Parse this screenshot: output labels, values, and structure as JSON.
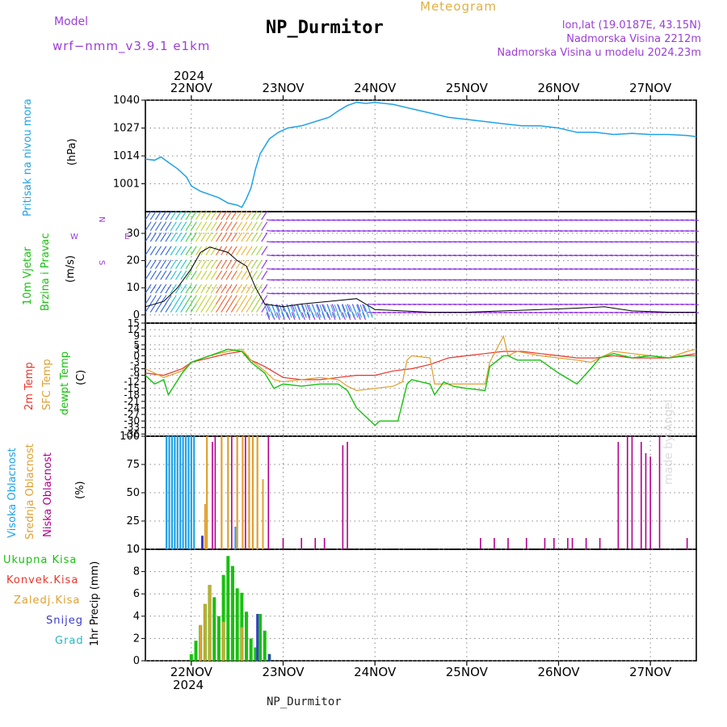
{
  "header": {
    "model_label": "Model",
    "model_name": "wrf−nmm_v3.9.1  e1km",
    "station_title": "NP_Durmitor",
    "meteogram_label": "Meteogram",
    "lonlat": "lon,lat (19.0187E, 43.15N)",
    "elevation": "Nadmorska Visina 2212m",
    "model_elevation": "Nadmorska Visina u modelu 2024.23m",
    "year_top": "2024",
    "watermark": "made by Angel",
    "footer_station": "NP_Durmitor",
    "year_bottom": "2024"
  },
  "colors": {
    "pressure": "#1fa2e8",
    "temp2m": "#e8352b",
    "sfc": "#e0a030",
    "dewpt": "#17c10e",
    "cloud_high": "#1fa2e8",
    "cloud_mid": "#e0a030",
    "cloud_low": "#b3008c",
    "precip_total": "#17c10e",
    "precip_conv": "#e8352b",
    "precip_frozen": "#e0a030",
    "snow": "#3a3ad0",
    "graupel": "#2ab8c0",
    "label_purple": "#9b3ed9",
    "label_gold": "#e0b040"
  },
  "chart_data": [
    {
      "type": "line",
      "id": "pressure",
      "title": "Pritisak na nivou mora",
      "ylabel": "(hPa)",
      "yticks": [
        1001,
        1014,
        1027,
        1040
      ],
      "ylim": [
        988,
        1040
      ],
      "xlim": [
        21.5,
        27.5
      ],
      "x_tick_labels": [
        "22NOV",
        "23NOV",
        "24NOV",
        "25NOV",
        "26NOV",
        "27NOV"
      ],
      "grid": true,
      "series": [
        {
          "x": [
            21.5,
            21.6,
            21.67,
            21.75,
            21.85,
            21.95,
            22.0,
            22.1,
            22.2,
            22.3,
            22.4,
            22.5,
            22.55,
            22.6,
            22.65,
            22.7,
            22.75,
            22.85,
            22.95,
            23.05,
            23.2,
            23.35,
            23.5,
            23.6,
            23.7,
            23.8,
            23.9,
            24.0,
            24.2,
            24.4,
            24.6,
            24.8,
            25.0,
            25.2,
            25.4,
            25.6,
            25.8,
            26.0,
            26.2,
            26.4,
            26.6,
            26.8,
            27.0,
            27.2,
            27.4,
            27.5
          ],
          "y": [
            1012.5,
            1012,
            1013.5,
            1011,
            1008,
            1004,
            1000,
            997.5,
            996,
            994.5,
            992,
            991,
            990,
            994,
            999,
            1008,
            1015,
            1022,
            1025,
            1027,
            1028,
            1030,
            1032,
            1035,
            1037.5,
            1039,
            1038.5,
            1039,
            1038,
            1036,
            1034,
            1032,
            1031,
            1030,
            1029,
            1028,
            1028,
            1027,
            1025,
            1025,
            1024,
            1024.5,
            1024,
            1024,
            1023.5,
            1023
          ]
        }
      ]
    },
    {
      "type": "line",
      "id": "wind",
      "title": "10m Vjetar Brzina i Pravac",
      "ylabel": "(m/s)",
      "direction_legend": [
        "N",
        "E",
        "W",
        "S"
      ],
      "yticks": [
        0,
        10,
        20,
        30
      ],
      "ylim": [
        -3,
        38
      ],
      "xlim": [
        21.5,
        27.5
      ],
      "barb_rows": [
        1,
        4,
        8,
        13,
        17,
        22,
        27,
        31,
        35,
        38
      ],
      "series": [
        {
          "name": "speed",
          "x": [
            21.5,
            21.7,
            21.85,
            22.0,
            22.1,
            22.2,
            22.3,
            22.4,
            22.5,
            22.6,
            22.7,
            22.8,
            23.0,
            23.2,
            23.5,
            23.8,
            24.0,
            24.3,
            24.6,
            25.0,
            25.4,
            25.8,
            26.2,
            26.5,
            26.8,
            27.2,
            27.5
          ],
          "y": [
            3,
            5,
            10,
            17,
            23,
            25,
            24,
            23,
            20,
            18,
            10,
            4,
            3,
            4,
            5,
            6,
            2,
            1.5,
            1,
            1,
            1.5,
            2,
            2.5,
            3,
            1.5,
            1,
            1
          ]
        }
      ]
    },
    {
      "type": "line",
      "id": "temperature",
      "title": [
        "2m Temp",
        "SFC Temp",
        "dewpt Temp"
      ],
      "ylabel": "(C)",
      "yticks": [
        15,
        12,
        9,
        5,
        3,
        0,
        -3,
        -6,
        -9,
        -12,
        -15,
        -18,
        -21,
        -24,
        -27,
        -30,
        -33,
        -36
      ],
      "ylim": [
        -37,
        15
      ],
      "xlim": [
        21.5,
        27.5
      ],
      "series": [
        {
          "name": "2m Temp",
          "x": [
            21.5,
            21.7,
            21.9,
            22.0,
            22.2,
            22.4,
            22.55,
            22.65,
            22.8,
            23.0,
            23.2,
            23.4,
            23.6,
            23.8,
            24.0,
            24.2,
            24.4,
            24.6,
            24.8,
            25.0,
            25.2,
            25.4,
            25.6,
            25.8,
            26.0,
            26.2,
            26.4,
            26.6,
            26.8,
            27.0,
            27.2,
            27.5
          ],
          "y": [
            -8,
            -9,
            -6,
            -3,
            -1,
            1,
            2,
            -2,
            -5,
            -10,
            -11,
            -11,
            -10,
            -9,
            -9,
            -7,
            -6,
            -4,
            -1,
            0,
            1,
            2,
            2,
            1,
            0,
            -1,
            -1,
            0,
            -1,
            -1,
            -1,
            1
          ]
        }
      ]
    },
    {
      "type": "bar",
      "id": "cloud",
      "title": [
        "Visoka Oblacnost",
        "Srednja Oblacnost",
        "Niska Oblacnost"
      ],
      "ylabel": "(%)",
      "yticks": [
        0,
        25,
        50,
        75,
        100
      ],
      "ylim": [
        0,
        100
      ],
      "xlim": [
        21.5,
        27.5
      ]
    },
    {
      "type": "bar",
      "id": "precip",
      "title": [
        "Ukupna Kisa",
        "Konvek.Kisa",
        "Zaledj.Kisa",
        "Snijeg",
        "Grad"
      ],
      "ylabel": "1hr Precip (mm)",
      "yticks": [
        0,
        2,
        4,
        6,
        8,
        10
      ],
      "ylim": [
        0,
        10
      ],
      "xlim": [
        21.5,
        27.5
      ],
      "series": [
        {
          "name": "Ukupna Kisa",
          "x": [
            22.0,
            22.05,
            22.1,
            22.15,
            22.2,
            22.25,
            22.3,
            22.35,
            22.4,
            22.45,
            22.5,
            22.55,
            22.6,
            22.65,
            22.7,
            22.75,
            22.8,
            22.85
          ],
          "y": [
            0.6,
            1.8,
            3.2,
            5.1,
            6.8,
            5.7,
            4,
            7.7,
            9.4,
            8.5,
            6.5,
            6.1,
            4.4,
            2,
            1.2,
            4.2,
            2.7,
            0.6
          ]
        }
      ]
    }
  ]
}
